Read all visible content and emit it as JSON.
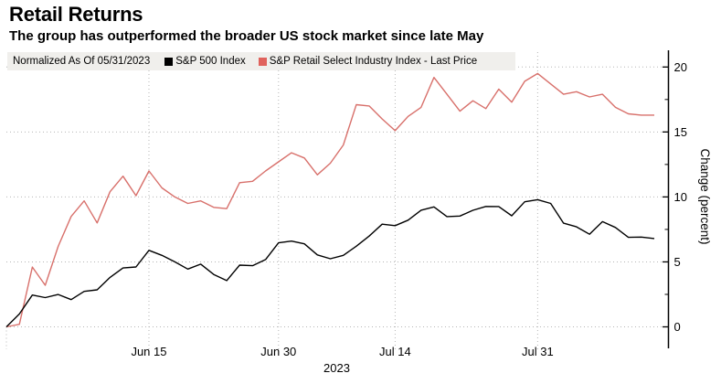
{
  "header": {
    "title": "Retail Returns",
    "subtitle": "The group has outperformed the broader US stock market since late May"
  },
  "legend": {
    "normalized_label": "Normalized As Of 05/31/2023",
    "items": [
      {
        "label": "S&P 500 Index",
        "color": "#000000"
      },
      {
        "label": "S&P Retail Select Industry Index - Last Price",
        "color": "#e0625c"
      }
    ]
  },
  "chart_data": {
    "type": "line",
    "title": "Retail Returns",
    "ylabel": "Change (percent)",
    "ylim": [
      0,
      20
    ],
    "yticks": [
      0,
      5,
      10,
      15,
      20
    ],
    "minor_yticks": [
      2.5,
      7.5,
      12.5,
      17.5
    ],
    "axis_side": "right",
    "grid": "dotted",
    "legend_position": "top-left",
    "year_label": "2023",
    "x_dates": [
      "05/31",
      "06/01",
      "06/02",
      "06/05",
      "06/06",
      "06/07",
      "06/08",
      "06/09",
      "06/12",
      "06/13",
      "06/14",
      "06/15",
      "06/16",
      "06/20",
      "06/21",
      "06/22",
      "06/23",
      "06/26",
      "06/27",
      "06/28",
      "06/29",
      "06/30",
      "07/03",
      "07/05",
      "07/06",
      "07/07",
      "07/10",
      "07/11",
      "07/12",
      "07/13",
      "07/14",
      "07/17",
      "07/18",
      "07/19",
      "07/20",
      "07/21",
      "07/24",
      "07/25",
      "07/26",
      "07/27",
      "07/28",
      "07/31",
      "08/01",
      "08/02",
      "08/03",
      "08/04",
      "08/07",
      "08/08",
      "08/09",
      "08/10",
      "08/11"
    ],
    "xticks": [
      {
        "label": "Jun 15",
        "index": 11
      },
      {
        "label": "Jun 30",
        "index": 21
      },
      {
        "label": "Jul 14",
        "index": 30
      },
      {
        "label": "Jul 31",
        "index": 41
      }
    ],
    "series": [
      {
        "name": "S&P Retail Select Industry Index - Last Price",
        "color": "#d8706b",
        "values": [
          0,
          0.2,
          4.6,
          3.2,
          6.2,
          8.5,
          9.7,
          8.0,
          10.4,
          11.6,
          10.1,
          12.0,
          10.7,
          10.0,
          9.5,
          9.7,
          9.2,
          9.1,
          11.1,
          11.2,
          12.0,
          12.7,
          13.4,
          13.0,
          11.7,
          12.6,
          14.0,
          17.1,
          17.0,
          16.0,
          15.1,
          16.2,
          16.9,
          19.2,
          17.9,
          16.6,
          17.4,
          16.8,
          18.3,
          17.3,
          18.9,
          19.5,
          18.7,
          17.9,
          18.1,
          17.7,
          17.9,
          16.9,
          16.4,
          16.3,
          16.3
        ]
      },
      {
        "name": "S&P 500 Index",
        "color": "#000000",
        "values": [
          0,
          0.99,
          2.45,
          2.25,
          2.49,
          2.1,
          2.73,
          2.85,
          3.81,
          4.53,
          4.61,
          5.89,
          5.5,
          5.0,
          4.45,
          4.83,
          4.03,
          3.56,
          4.75,
          4.71,
          5.18,
          6.47,
          6.6,
          6.39,
          5.54,
          5.24,
          5.5,
          6.21,
          6.99,
          7.9,
          7.79,
          8.21,
          8.98,
          9.23,
          8.49,
          8.53,
          8.97,
          9.27,
          9.26,
          8.55,
          9.63,
          9.79,
          9.5,
          7.98,
          7.7,
          7.13,
          8.1,
          7.65,
          6.89,
          6.91,
          6.8
        ]
      }
    ]
  },
  "colors": {
    "background": "#ffffff",
    "legend_bg": "#f0efec",
    "grid": "#b5b5b5",
    "axis": "#000000"
  }
}
